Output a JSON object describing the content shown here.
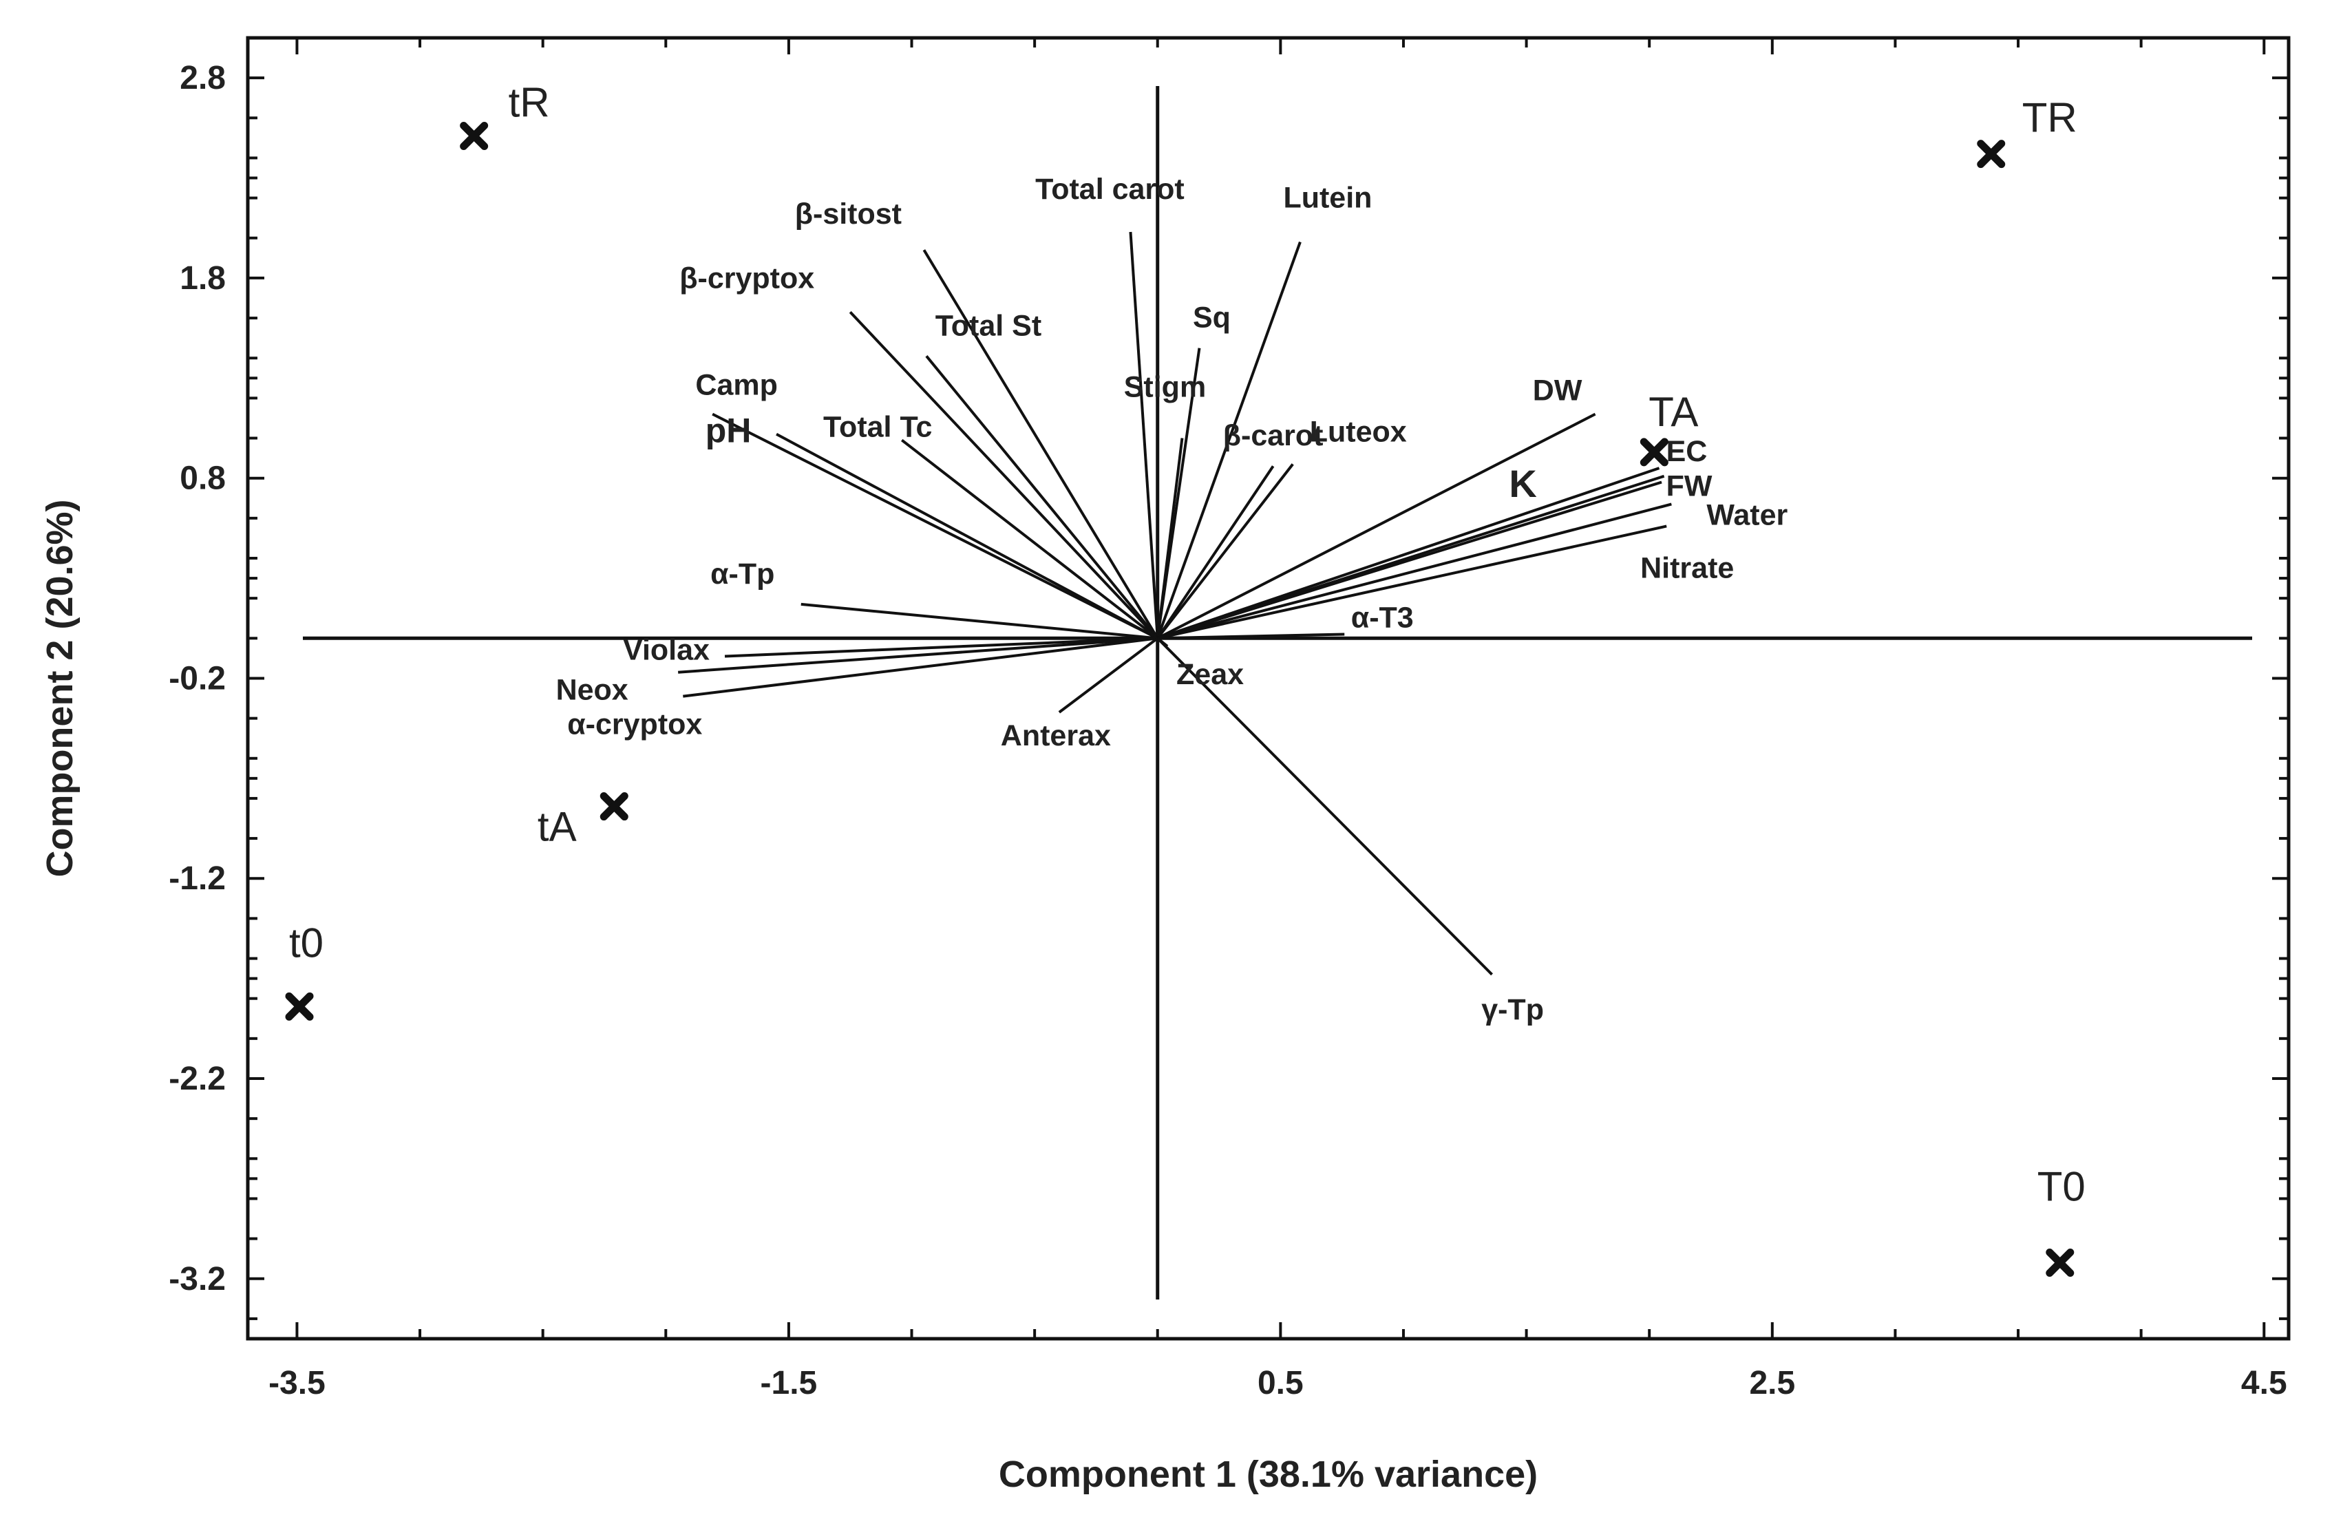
{
  "chart_data": {
    "type": "scatter",
    "subtype": "pca-biplot",
    "xlabel": "Component 1 (38.1% variance)",
    "ylabel": "Component 2 (20.6%)",
    "xlim": [
      -3.7,
      4.6
    ],
    "ylim": [
      -3.5,
      3.0
    ],
    "xticks": [
      -3.5,
      -1.5,
      0.5,
      2.5,
      4.5
    ],
    "xtick_labels": [
      "-3.5",
      "-1.5",
      "0.5",
      "2.5",
      "4.5"
    ],
    "yticks": [
      2.8,
      1.8,
      0.8,
      -0.2,
      -1.2,
      -2.2,
      -3.2
    ],
    "ytick_labels": [
      "2.8",
      "1.8",
      "0.8",
      "-0.2",
      "-1.2",
      "-2.2",
      "-3.2"
    ],
    "grid": false,
    "legend": "none",
    "observations": [
      {
        "name": "tR",
        "x": -2.78,
        "y": 2.51
      },
      {
        "name": "TR",
        "x": 3.39,
        "y": 2.42
      },
      {
        "name": "TA",
        "x": 2.02,
        "y": 0.93
      },
      {
        "name": "tA",
        "x": -2.21,
        "y": -0.84
      },
      {
        "name": "t0",
        "x": -3.49,
        "y": -1.84
      },
      {
        "name": "T0",
        "x": 3.67,
        "y": -3.12
      }
    ],
    "loadings": [
      {
        "name": "Lutein",
        "x": 0.58,
        "y": 1.98
      },
      {
        "name": "Total carot",
        "x": -0.11,
        "y": 2.03
      },
      {
        "name": "β-sitost",
        "x": -0.95,
        "y": 1.94
      },
      {
        "name": "β-cryptox",
        "x": -1.25,
        "y": 1.63
      },
      {
        "name": "Total St",
        "x": -0.94,
        "y": 1.41
      },
      {
        "name": "Sq",
        "x": 0.17,
        "y": 1.45
      },
      {
        "name": "Stigm",
        "x": 0.1,
        "y": 1.0
      },
      {
        "name": "Camp",
        "x": -1.81,
        "y": 1.12
      },
      {
        "name": "pH",
        "x": -1.55,
        "y": 1.02
      },
      {
        "name": "Total Tc",
        "x": -1.04,
        "y": 0.99
      },
      {
        "name": "Luteox",
        "x": 0.55,
        "y": 0.87
      },
      {
        "name": "β-carot",
        "x": 0.47,
        "y": 0.86
      },
      {
        "name": "DW",
        "x": 1.78,
        "y": 1.12
      },
      {
        "name": "EC",
        "x": 2.04,
        "y": 0.85
      },
      {
        "name": "K",
        "x": 2.06,
        "y": 0.81
      },
      {
        "name": "FW",
        "x": 2.05,
        "y": 0.78
      },
      {
        "name": "Water",
        "x": 2.09,
        "y": 0.67
      },
      {
        "name": "Nitrate",
        "x": 2.07,
        "y": 0.56
      },
      {
        "name": "α-Tp",
        "x": -1.45,
        "y": 0.17
      },
      {
        "name": "α-T3",
        "x": 0.76,
        "y": 0.02
      },
      {
        "name": "Violax",
        "x": -1.76,
        "y": -0.09
      },
      {
        "name": "Neox",
        "x": -1.95,
        "y": -0.17
      },
      {
        "name": "α-cryptox",
        "x": -1.93,
        "y": -0.29
      },
      {
        "name": "Zeax",
        "x": 0.04,
        "y": -0.04
      },
      {
        "name": "Anterax",
        "x": -0.4,
        "y": -0.37
      },
      {
        "name": "γ-Tp",
        "x": 1.36,
        "y": -1.68
      }
    ]
  }
}
